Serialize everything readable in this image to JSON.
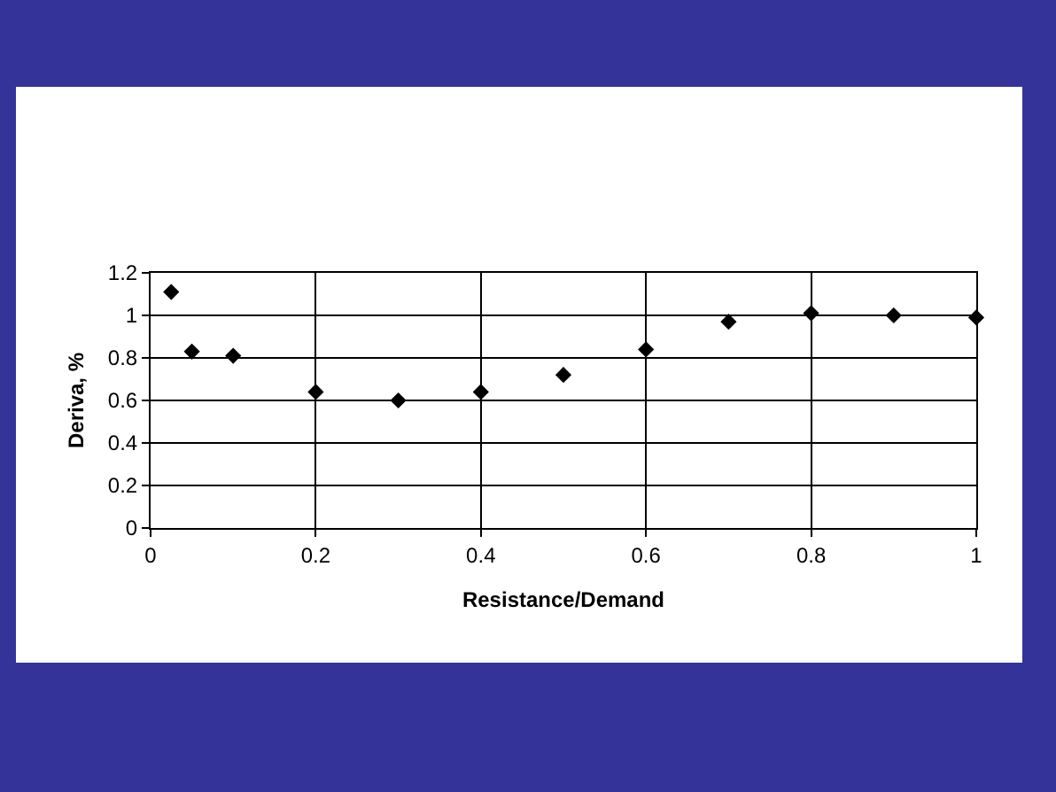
{
  "chart_data": {
    "type": "scatter",
    "xlabel": "Resistance/Demand",
    "ylabel": "Deriva, %",
    "x": [
      0.025,
      0.05,
      0.1,
      0.2,
      0.3,
      0.4,
      0.5,
      0.6,
      0.7,
      0.8,
      0.9,
      1.0
    ],
    "series": [
      {
        "color": "#000000",
        "values": [
          1.11,
          0.83,
          0.81,
          0.64,
          0.6,
          0.64,
          0.72,
          0.84,
          0.97,
          1.01,
          1.0,
          0.99
        ]
      }
    ],
    "xlim": [
      0,
      1
    ],
    "xticks": [
      0,
      0.2,
      0.4,
      0.6,
      0.8,
      1
    ],
    "ylim": [
      0,
      1.2
    ],
    "yticks": [
      0,
      0.2,
      0.4,
      0.6,
      0.8,
      1,
      1.2
    ],
    "grid": true,
    "marker": "diamond"
  }
}
